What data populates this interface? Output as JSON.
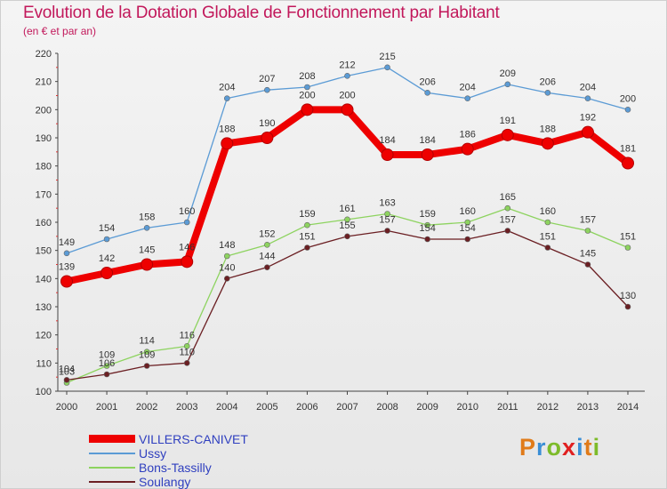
{
  "title": "Evolution de la Dotation Globale de Fonctionnement par Habitant",
  "subtitle": "(en € et par an)",
  "logo": {
    "text": "Proxiti",
    "colors": [
      "#e07b1a",
      "#3b8fd6",
      "#7dbb2a",
      "#e02020",
      "#3b8fd6",
      "#e07b1a",
      "#7dbb2a"
    ]
  },
  "chart_data": {
    "type": "line",
    "title": "Evolution de la Dotation Globale de Fonctionnement par Habitant",
    "subtitle": "(en € et par an)",
    "xlabel": "",
    "ylabel": "",
    "ylim": [
      100,
      220
    ],
    "yticks": [
      100,
      110,
      120,
      130,
      140,
      150,
      160,
      170,
      180,
      190,
      200,
      210,
      220
    ],
    "categories": [
      "2000",
      "2001",
      "2002",
      "2003",
      "2004",
      "2005",
      "2006",
      "2007",
      "2008",
      "2009",
      "2010",
      "2011",
      "2012",
      "2013",
      "2014"
    ],
    "series": [
      {
        "name": "VILLERS-CANIVET",
        "color": "#ee0000",
        "values": [
          139,
          142,
          145,
          146,
          188,
          190,
          200,
          200,
          184,
          184,
          186,
          191,
          188,
          192,
          181
        ]
      },
      {
        "name": "Ussy",
        "color": "#5b9bd5",
        "values": [
          149,
          154,
          158,
          160,
          204,
          207,
          208,
          212,
          215,
          206,
          204,
          209,
          206,
          204,
          200
        ]
      },
      {
        "name": "Bons-Tassilly",
        "color": "#8dd35f",
        "values": [
          103,
          109,
          114,
          116,
          148,
          152,
          159,
          161,
          163,
          159,
          160,
          165,
          160,
          157,
          151
        ]
      },
      {
        "name": "Soulangy",
        "color": "#6b1f23",
        "values": [
          104,
          106,
          109,
          110,
          140,
          144,
          151,
          155,
          157,
          154,
          154,
          157,
          151,
          145,
          130
        ]
      }
    ],
    "legend_position": "bottom-left",
    "grid": false
  }
}
